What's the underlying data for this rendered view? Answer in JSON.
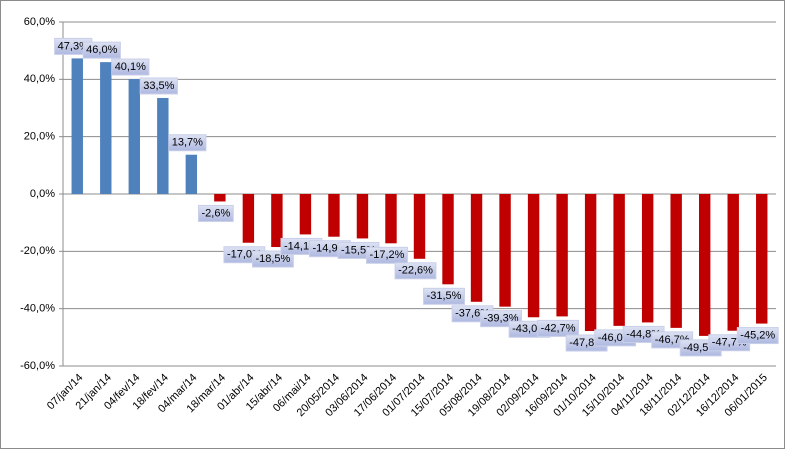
{
  "chart_data": {
    "type": "bar",
    "categories": [
      "07/jan/14",
      "21/jan/14",
      "04/fev/14",
      "18/fev/14",
      "04/mar/14",
      "18/mar/14",
      "01/abr/14",
      "15/abr/14",
      "06/mai/14",
      "20/05/2014",
      "03/06/2014",
      "17/06/2014",
      "01/07/2014",
      "15/07/2014",
      "05/08/2014",
      "19/08/2014",
      "02/09/2014",
      "16/09/2014",
      "01/10/2014",
      "15/10/2014",
      "04/11/2014",
      "18/11/2014",
      "02/12/2014",
      "16/12/2014",
      "06/01/2015"
    ],
    "values": [
      47.3,
      46.0,
      40.1,
      33.5,
      13.7,
      -2.6,
      -17.0,
      -18.5,
      -14.1,
      -14.9,
      -15.5,
      -17.2,
      -22.6,
      -31.5,
      -37.6,
      -39.3,
      -43.0,
      -42.7,
      -47.8,
      -46.0,
      -44.8,
      -46.7,
      -49.5,
      -47.7,
      -45.2
    ],
    "value_labels": [
      "47,3%",
      "46,0%",
      "40,1%",
      "33,5%",
      "13,7%",
      "-2,6%",
      "-17,0%",
      "-18,5%",
      "-14,1%",
      "-14,9%",
      "-15,5%",
      "-17,2%",
      "-22,6%",
      "-31,5%",
      "-37,6%",
      "-39,3%",
      "-43,0%",
      "-42,7%",
      "-47,8%",
      "-46,0%",
      "-44,8%",
      "-46,7%",
      "-49,5%",
      "-47,7%",
      "-45,2%"
    ],
    "color": "#4f81bd",
    "negative_color": "#c00000",
    "ylim": [
      -60,
      60
    ],
    "yticks": [
      {
        "value": -60,
        "label": "-60,0%"
      },
      {
        "value": -40,
        "label": "-40,0%"
      },
      {
        "value": -20,
        "label": "-20,0%"
      },
      {
        "value": 0,
        "label": "0,0%"
      },
      {
        "value": 20,
        "label": "20,0%"
      },
      {
        "value": 40,
        "label": "40,0%"
      },
      {
        "value": 60,
        "label": "60,0%"
      }
    ],
    "grid": true
  }
}
